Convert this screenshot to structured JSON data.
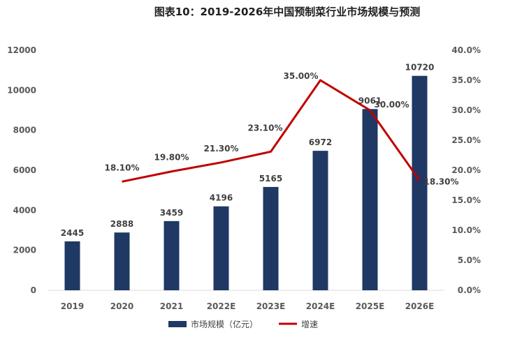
{
  "chart_data": {
    "type": "bar",
    "title": "图表10：2019-2026年中国预制菜行业市场规模与预测",
    "categories": [
      "2019",
      "2020",
      "2021",
      "2022E",
      "2023E",
      "2024E",
      "2025E",
      "2026E"
    ],
    "series": [
      {
        "name": "市场规模（亿元）",
        "type": "bar",
        "axis": "left",
        "color": "#1f3864",
        "values": [
          2445,
          2888,
          3459,
          4196,
          5165,
          6972,
          9061,
          10720
        ],
        "labels": [
          "2445",
          "2888",
          "3459",
          "4196",
          "5165",
          "6972",
          "9061",
          "10720"
        ]
      },
      {
        "name": "增速",
        "type": "line",
        "axis": "right",
        "color": "#c00000",
        "values": [
          null,
          18.1,
          19.8,
          21.3,
          23.1,
          35.0,
          30.0,
          18.3
        ],
        "labels": [
          null,
          "18.10%",
          "19.80%",
          "21.30%",
          "23.10%",
          "35.00%",
          "30.00%",
          "18.30%"
        ]
      }
    ],
    "y_left": {
      "min": 0,
      "max": 12000,
      "ticks": [
        "0",
        "2000",
        "4000",
        "6000",
        "8000",
        "10000",
        "12000"
      ]
    },
    "y_right": {
      "min": 0,
      "max": 40,
      "ticks": [
        "0.0%",
        "5.0%",
        "10.0%",
        "15.0%",
        "20.0%",
        "25.0%",
        "30.0%",
        "35.0%",
        "40.0%"
      ]
    },
    "grid": false,
    "legend_position": "bottom"
  }
}
